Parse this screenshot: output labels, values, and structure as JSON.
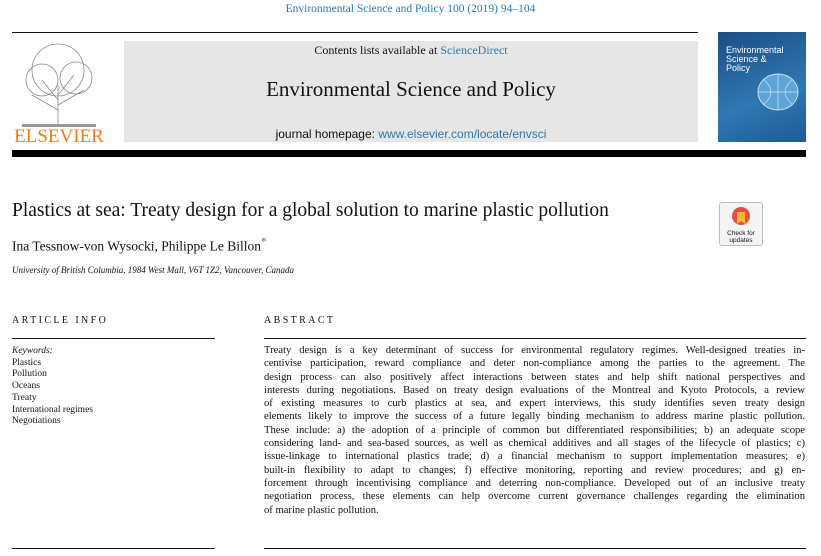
{
  "journal_ref": "Environmental Science and Policy 100 (2019) 94–104",
  "header": {
    "contents_prefix": "Contents lists available at ",
    "contents_link": "ScienceDirect",
    "journal_title": "Environmental Science and Policy",
    "homepage_prefix": "journal homepage: ",
    "homepage_link": "www.elsevier.com/locate/envsci"
  },
  "publisher": "ELSEVIER",
  "cover_title": [
    "Environmental",
    "Science &",
    "Policy"
  ],
  "badge": {
    "line1": "Check for",
    "line2": "updates"
  },
  "article": {
    "title": "Plastics at sea: Treaty design for a global solution to marine plastic pollution",
    "authors": "Ina Tessnow-von Wysocki, Philippe Le Billon",
    "author_mark": "*",
    "affiliation": "University of British Columbia, 1984 West Mall, V6T 1Z2, Vancouver, Canada"
  },
  "article_info": {
    "heading": "ARTICLE INFO",
    "keywords_label": "Keywords:",
    "keywords": [
      "Plastics",
      "Pollution",
      "Oceans",
      "Treaty",
      "International regimes",
      "Negotiations"
    ]
  },
  "abstract": {
    "heading": "ABSTRACT",
    "lines": [
      "Treaty design is a key determinant of success for environmental regulatory regimes. Well-designed treaties in-",
      "centivise participation, reward compliance and deter non-compliance among the parties to the agreement. The",
      "design process can also positively affect interactions between states and help shift national perspectives and",
      "interests during negotiations. Based on treaty design evaluations of the Montreal and Kyoto Protocols, a review",
      "of existing measures to curb plastics at sea, and expert interviews, this study identifies seven treaty design",
      "elements likely to improve the success of a future legally binding mechanism to address marine plastic pollution.",
      "These include: a) the adoption of a principle of common but differentiated responsibilities; b) an adequate scope",
      "considering land- and sea-based sources, as well as chemical additives and all stages of the lifecycle of plastics; c)",
      "issue-linkage to international plastics trade; d) a financial mechanism to support implementation measures; e)",
      "built-in flexibility to adapt to changes; f) effective monitoring, reporting and review procedures; and g) en-",
      "forcement through incentivising compliance and deterring non-compliance. Developed out of an inclusive treaty",
      "negotiation process, these elements can help overcome current governance challenges regarding the elimination",
      "of marine plastic pollution."
    ]
  },
  "colors": {
    "link": "#2a7ab0",
    "elsevier": "#f07b1c",
    "header_bg": "#e6e6e6"
  }
}
